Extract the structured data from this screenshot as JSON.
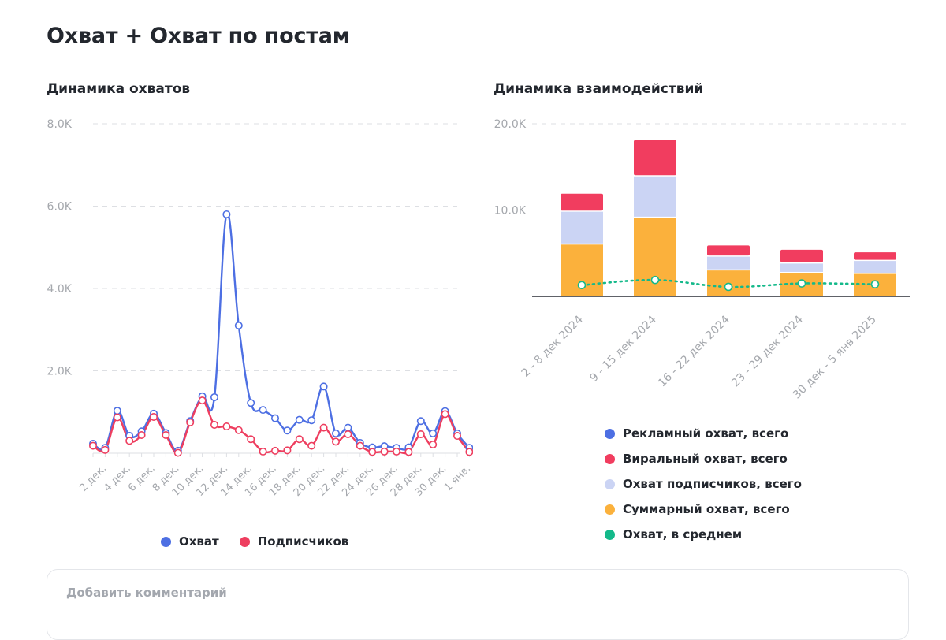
{
  "page": {
    "title": "Охват + Охват по постам",
    "comment_placeholder": "Добавить комментарий"
  },
  "colors": {
    "reach": "#4d6fe3",
    "subscribers": "#ee3e5f",
    "ad": "#4d6fe3",
    "viral": "#f13d5f",
    "subs_bar": "#cbd4f4",
    "total": "#fbb13c",
    "avg": "#14b98a",
    "grid": "#dddfe3",
    "axis_text": "#a5a8ad"
  },
  "chart_data": [
    {
      "type": "line",
      "title": "Динамика охватов",
      "ylim": [
        0,
        8000
      ],
      "yticks": [
        {
          "value": 2000,
          "label": "2.0K"
        },
        {
          "value": 4000,
          "label": "4.0K"
        },
        {
          "value": 6000,
          "label": "6.0K"
        },
        {
          "value": 8000,
          "label": "8.0K"
        }
      ],
      "x_count": 32,
      "xtick_labels": [
        {
          "index": 1,
          "label": "2 дек."
        },
        {
          "index": 3,
          "label": "4 дек."
        },
        {
          "index": 5,
          "label": "6 дек."
        },
        {
          "index": 7,
          "label": "8 дек."
        },
        {
          "index": 9,
          "label": "10 дек."
        },
        {
          "index": 11,
          "label": "12 дек."
        },
        {
          "index": 13,
          "label": "14 дек."
        },
        {
          "index": 15,
          "label": "16 дек."
        },
        {
          "index": 17,
          "label": "18 дек."
        },
        {
          "index": 19,
          "label": "20 дек."
        },
        {
          "index": 21,
          "label": "22 дек."
        },
        {
          "index": 23,
          "label": "24 дек."
        },
        {
          "index": 25,
          "label": "26 дек."
        },
        {
          "index": 27,
          "label": "28 дек."
        },
        {
          "index": 29,
          "label": "30 дек."
        },
        {
          "index": 31,
          "label": "1 янв."
        }
      ],
      "series": [
        {
          "name": "Охват",
          "color_key": "reach",
          "values": [
            230,
            130,
            1030,
            420,
            530,
            960,
            490,
            60,
            780,
            1380,
            1360,
            5800,
            3100,
            1220,
            1050,
            850,
            550,
            810,
            800,
            1620,
            480,
            620,
            250,
            140,
            170,
            130,
            140,
            780,
            480,
            1020,
            480,
            130
          ]
        },
        {
          "name": "Подписчиков",
          "color_key": "subscribers",
          "values": [
            180,
            80,
            870,
            300,
            440,
            880,
            440,
            10,
            750,
            1280,
            690,
            650,
            560,
            340,
            40,
            60,
            70,
            340,
            180,
            620,
            280,
            460,
            180,
            30,
            40,
            40,
            30,
            460,
            210,
            950,
            420,
            30
          ]
        }
      ],
      "legend": [
        {
          "label": "Охват",
          "color_key": "reach"
        },
        {
          "label": "Подписчиков",
          "color_key": "subscribers"
        }
      ]
    },
    {
      "type": "bar",
      "stacked": true,
      "title": "Динамика взаимодействий",
      "ylim": [
        0,
        20000
      ],
      "yticks": [
        {
          "value": 10000,
          "label": "10.0K"
        },
        {
          "value": 20000,
          "label": "20.0K"
        }
      ],
      "categories": [
        "2 - 8 дек 2024",
        "9 - 15 дек 2024",
        "16 - 22 дек 2024",
        "23 - 29 дек 2024",
        "30 дек - 5 янв 2025"
      ],
      "series": [
        {
          "name": "Суммарный охват, всего",
          "color_key": "total",
          "values": [
            6000,
            9100,
            3000,
            2700,
            2600
          ]
        },
        {
          "name": "Охват подписчиков, всего",
          "color_key": "subs_bar",
          "values": [
            3800,
            4800,
            1600,
            1100,
            1500
          ]
        },
        {
          "name": "Виральный охват, всего",
          "color_key": "viral",
          "values": [
            2100,
            4200,
            1300,
            1600,
            1000
          ]
        }
      ],
      "line_series": {
        "name": "Охват, в среднем",
        "color_key": "avg",
        "values": [
          1300,
          1900,
          1100,
          1500,
          1400
        ]
      },
      "legend": [
        {
          "label": "Рекламный охват, всего",
          "color_key": "ad"
        },
        {
          "label": "Виральный охват, всего",
          "color_key": "viral"
        },
        {
          "label": "Охват подписчиков, всего",
          "color_key": "subs_bar"
        },
        {
          "label": "Суммарный охват, всего",
          "color_key": "total"
        },
        {
          "label": "Охват, в среднем",
          "color_key": "avg"
        }
      ]
    }
  ]
}
